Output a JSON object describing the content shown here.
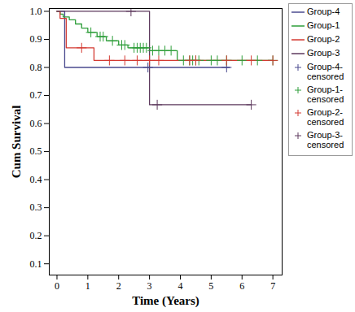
{
  "chart_data": {
    "type": "line",
    "x_label": "Time (Years)",
    "y_label": "Cum Survival",
    "xlim": [
      -0.25,
      7.3
    ],
    "xticks": [
      0,
      1,
      2,
      3,
      4,
      5,
      6,
      7
    ],
    "ylim": [
      0.06,
      1.01
    ],
    "yticks": [
      0.1,
      0.2,
      0.3,
      0.4,
      0.5,
      0.6,
      0.7,
      0.8,
      0.9,
      {
        "value": 1,
        "label": "1.0"
      }
    ],
    "legend": "right",
    "series": [
      {
        "name": "Group-4",
        "color": "#4b4b8f",
        "type": "line",
        "line_style": "step",
        "x": [
          0,
          0.25,
          5.6
        ],
        "values": [
          1,
          0.8,
          0.8
        ]
      },
      {
        "name": "Group-1",
        "color": "#2e9e3a",
        "type": "line",
        "line_style": "step",
        "x": [
          0,
          0.1,
          0.2,
          0.4,
          0.6,
          0.8,
          1.0,
          1.3,
          1.6,
          2.0,
          2.3,
          3.0,
          3.9,
          7.0
        ],
        "values": [
          1,
          0.99,
          0.98,
          0.97,
          0.955,
          0.94,
          0.925,
          0.91,
          0.895,
          0.88,
          0.87,
          0.86,
          0.825,
          0.825
        ]
      },
      {
        "name": "Group-2",
        "color": "#d43a32",
        "type": "line",
        "line_style": "step",
        "x": [
          0,
          0.1,
          0.3,
          1.2,
          7.0
        ],
        "values": [
          1,
          0.975,
          0.87,
          0.825,
          0.825
        ]
      },
      {
        "name": "Group-3",
        "color": "#5e3a5e",
        "type": "line",
        "line_style": "step",
        "x": [
          0,
          3.0,
          6.3
        ],
        "values": [
          1,
          0.667,
          0.667
        ]
      },
      {
        "name": "Group-4-censored",
        "color": "#4b4b8f",
        "type": "scatter",
        "marker": "plus",
        "x": [
          2.95,
          5.5
        ],
        "values": [
          0.8,
          0.8
        ]
      },
      {
        "name": "Group-1-censored",
        "color": "#2e9e3a",
        "type": "scatter",
        "marker": "plus",
        "x": [
          1.1,
          1.4,
          1.5,
          1.8,
          2.1,
          2.2,
          2.5,
          2.6,
          2.7,
          2.8,
          2.9,
          3.1,
          3.3,
          3.5,
          3.7,
          4.1,
          4.3,
          4.4,
          4.5,
          4.6,
          5.0,
          5.2,
          5.5,
          6.0,
          6.5,
          7.0
        ],
        "values": [
          0.925,
          0.91,
          0.91,
          0.895,
          0.88,
          0.88,
          0.87,
          0.87,
          0.87,
          0.87,
          0.87,
          0.86,
          0.86,
          0.86,
          0.86,
          0.825,
          0.825,
          0.825,
          0.825,
          0.825,
          0.825,
          0.825,
          0.825,
          0.825,
          0.825,
          0.825
        ]
      },
      {
        "name": "Group-2-censored",
        "color": "#d43a32",
        "type": "scatter",
        "marker": "plus",
        "x": [
          0.8,
          1.7,
          2.2,
          2.6,
          3.0,
          3.3,
          4.3,
          4.5,
          5.5,
          6.3,
          7.0
        ],
        "values": [
          0.87,
          0.825,
          0.825,
          0.825,
          0.825,
          0.825,
          0.825,
          0.825,
          0.825,
          0.825,
          0.825
        ]
      },
      {
        "name": "Group-3-censored",
        "color": "#5e3a5e",
        "type": "scatter",
        "marker": "plus",
        "x": [
          2.4,
          3.25,
          6.3
        ],
        "values": [
          1,
          0.667,
          0.667
        ]
      }
    ]
  }
}
